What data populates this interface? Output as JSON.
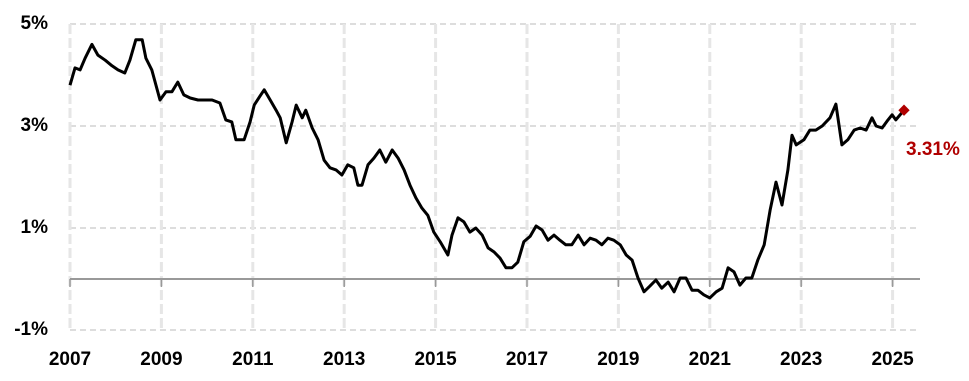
{
  "chart_data": {
    "type": "line",
    "x": [
      2007.0,
      2007.11,
      2007.22,
      2007.33,
      2007.48,
      2007.61,
      2007.77,
      2007.92,
      2008.05,
      2008.2,
      2008.31,
      2008.44,
      2008.58,
      2008.66,
      2008.79,
      2008.97,
      2009.1,
      2009.23,
      2009.36,
      2009.49,
      2009.63,
      2009.8,
      2009.98,
      2010.11,
      2010.28,
      2010.41,
      2010.54,
      2010.63,
      2010.81,
      2010.94,
      2011.03,
      2011.16,
      2011.25,
      2011.38,
      2011.51,
      2011.6,
      2011.73,
      2011.86,
      2011.95,
      2012.08,
      2012.16,
      2012.3,
      2012.43,
      2012.56,
      2012.69,
      2012.82,
      2012.95,
      2013.08,
      2013.21,
      2013.3,
      2013.39,
      2013.52,
      2013.65,
      2013.78,
      2013.91,
      2014.05,
      2014.18,
      2014.31,
      2014.44,
      2014.57,
      2014.7,
      2014.83,
      2014.96,
      2015.1,
      2015.27,
      2015.36,
      2015.49,
      2015.62,
      2015.75,
      2015.88,
      2016.02,
      2016.15,
      2016.28,
      2016.41,
      2016.54,
      2016.67,
      2016.8,
      2016.93,
      2017.07,
      2017.2,
      2017.33,
      2017.46,
      2017.59,
      2017.72,
      2017.85,
      2017.98,
      2018.12,
      2018.25,
      2018.38,
      2018.51,
      2018.64,
      2018.77,
      2018.9,
      2019.04,
      2019.17,
      2019.3,
      2019.43,
      2019.56,
      2019.69,
      2019.82,
      2019.95,
      2020.09,
      2020.22,
      2020.35,
      2020.48,
      2020.61,
      2020.74,
      2020.87,
      2021.0,
      2021.14,
      2021.27,
      2021.4,
      2021.53,
      2021.66,
      2021.79,
      2021.92,
      2022.05,
      2022.19,
      2022.32,
      2022.45,
      2022.58,
      2022.71,
      2022.8,
      2022.89,
      2023.06,
      2023.19,
      2023.32,
      2023.46,
      2023.63,
      2023.76,
      2023.89,
      2024.02,
      2024.16,
      2024.29,
      2024.42,
      2024.55,
      2024.64,
      2024.77,
      2024.9,
      2024.99,
      2025.07,
      2025.25
    ],
    "series": [
      {
        "color": "#000000",
        "values": [
          3.8,
          4.14,
          4.1,
          4.33,
          4.6,
          4.39,
          4.29,
          4.18,
          4.1,
          4.04,
          4.29,
          4.69,
          4.69,
          4.33,
          4.1,
          3.51,
          3.67,
          3.67,
          3.86,
          3.61,
          3.55,
          3.51,
          3.51,
          3.51,
          3.45,
          3.12,
          3.08,
          2.73,
          2.73,
          3.08,
          3.41,
          3.59,
          3.71,
          3.51,
          3.31,
          3.16,
          2.67,
          3.08,
          3.41,
          3.16,
          3.31,
          2.96,
          2.73,
          2.33,
          2.18,
          2.14,
          2.04,
          2.24,
          2.18,
          1.84,
          1.84,
          2.24,
          2.37,
          2.53,
          2.29,
          2.53,
          2.37,
          2.14,
          1.84,
          1.59,
          1.39,
          1.25,
          0.92,
          0.73,
          0.47,
          0.86,
          1.2,
          1.12,
          0.92,
          1.0,
          0.86,
          0.61,
          0.53,
          0.41,
          0.22,
          0.22,
          0.33,
          0.73,
          0.84,
          1.04,
          0.96,
          0.76,
          0.86,
          0.76,
          0.67,
          0.67,
          0.86,
          0.67,
          0.8,
          0.76,
          0.67,
          0.8,
          0.76,
          0.67,
          0.47,
          0.37,
          0.02,
          -0.25,
          -0.14,
          -0.02,
          -0.18,
          -0.06,
          -0.25,
          0.02,
          0.02,
          -0.22,
          -0.22,
          -0.31,
          -0.37,
          -0.25,
          -0.18,
          0.22,
          0.14,
          -0.12,
          0.02,
          0.02,
          0.37,
          0.67,
          1.35,
          1.9,
          1.45,
          2.14,
          2.82,
          2.63,
          2.73,
          2.92,
          2.92,
          3.0,
          3.16,
          3.43,
          2.63,
          2.73,
          2.92,
          2.96,
          2.92,
          3.16,
          3.0,
          2.96,
          3.12,
          3.22,
          3.12,
          3.31
        ]
      }
    ],
    "annotation": {
      "text": "3.31%",
      "color": "#b00000"
    },
    "xlim": [
      2007,
      2025.6
    ],
    "xticks": [
      2007,
      2009,
      2011,
      2013,
      2015,
      2017,
      2019,
      2021,
      2023,
      2025
    ],
    "ylim": [
      -1,
      5
    ],
    "yticks": [
      {
        "value": -1,
        "label": "-1%"
      },
      {
        "value": 1,
        "label": "1%"
      },
      {
        "value": 3,
        "label": "3%"
      },
      {
        "value": 5,
        "label": "5%"
      }
    ],
    "grid": true,
    "zero_line": true
  }
}
